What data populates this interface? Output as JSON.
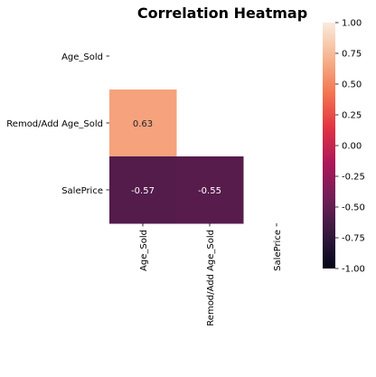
{
  "chart_data": {
    "type": "heatmap",
    "title": "Correlation Heatmap",
    "row_labels": [
      "Age_Sold",
      "Remod/Add Age_Sold",
      "SalePrice"
    ],
    "col_labels": [
      "Age_Sold",
      "Remod/Add Age_Sold",
      "SalePrice"
    ],
    "mask": "upper-triangle-including-diagonal",
    "cells": [
      {
        "row": 1,
        "col": 0,
        "value": 0.63,
        "label": "0.63"
      },
      {
        "row": 2,
        "col": 0,
        "value": -0.57,
        "label": "-0.57"
      },
      {
        "row": 2,
        "col": 1,
        "value": -0.55,
        "label": "-0.55"
      }
    ],
    "colorbar": {
      "vmin": -1.0,
      "vmax": 1.0,
      "ticks": [
        {
          "value": 1.0,
          "label": "1.00"
        },
        {
          "value": 0.75,
          "label": "0.75"
        },
        {
          "value": 0.5,
          "label": "0.50"
        },
        {
          "value": 0.25,
          "label": "0.25"
        },
        {
          "value": 0.0,
          "label": "0.00"
        },
        {
          "value": -0.25,
          "label": "-0.25"
        },
        {
          "value": -0.5,
          "label": "-0.50"
        },
        {
          "value": -0.75,
          "label": "-0.75"
        },
        {
          "value": -1.0,
          "label": "-1.00"
        }
      ],
      "colormap": "rocket",
      "stops": [
        "#03051a",
        "#35193e",
        "#701f57",
        "#ad1759",
        "#e13342",
        "#f37651",
        "#f6b48f",
        "#faebdd"
      ]
    }
  }
}
